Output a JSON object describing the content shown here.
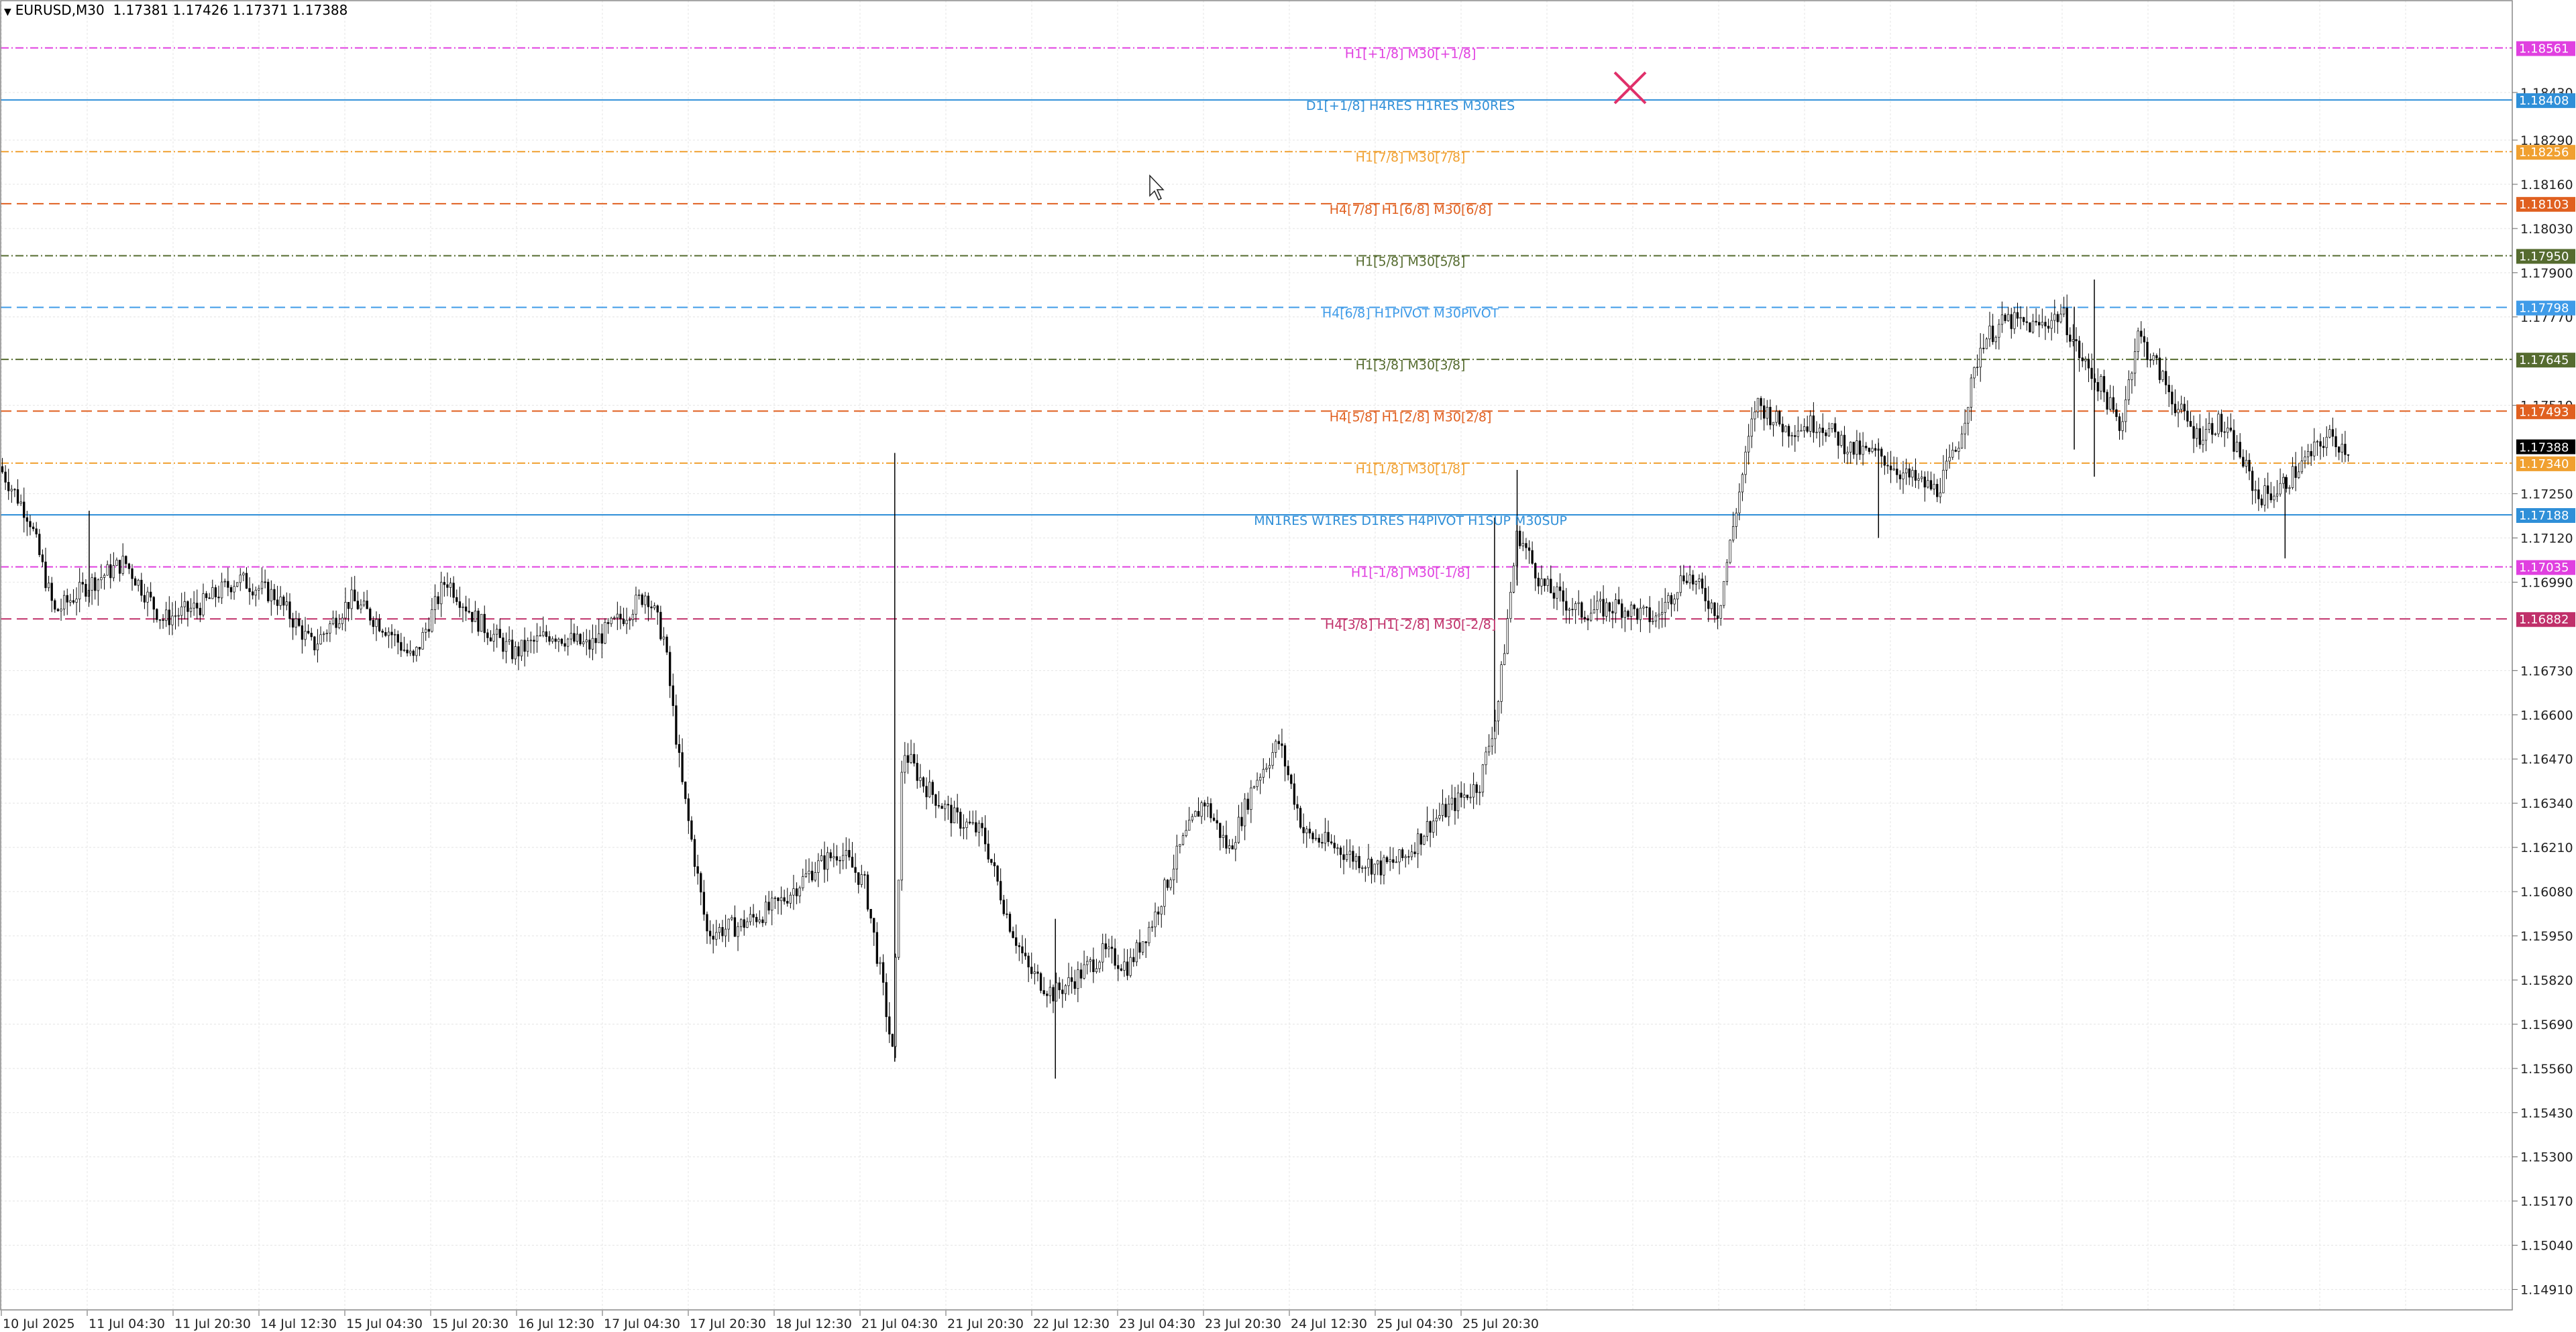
{
  "header": {
    "symbol": "EURUSD,M30",
    "ohlc": "1.17381 1.17426 1.17371 1.17388"
  },
  "colors": {
    "background": "#ffffff",
    "grid": "#e4e4e4",
    "candle": "#000000",
    "bid_tag": "#000000",
    "cross_marker": "#e0306a"
  },
  "chart_data": {
    "type": "candlestick",
    "symbol": "EURUSD",
    "timeframe": "M30",
    "ylim": [
      1.1485,
      1.187
    ],
    "grid": true,
    "y_ticks": [
      "1.18430",
      "1.18290",
      "1.18160",
      "1.18030",
      "1.17900",
      "1.17770",
      "1.17510",
      "1.17250",
      "1.17120",
      "1.16990",
      "1.16730",
      "1.16600",
      "1.16470",
      "1.16340",
      "1.16210",
      "1.16080",
      "1.15950",
      "1.15820",
      "1.15690",
      "1.15560",
      "1.15430",
      "1.15300",
      "1.15170",
      "1.15040",
      "1.14910"
    ],
    "x_ticks": [
      "10 Jul 2025",
      "11 Jul 04:30",
      "11 Jul 20:30",
      "14 Jul 12:30",
      "15 Jul 04:30",
      "15 Jul 20:30",
      "16 Jul 12:30",
      "17 Jul 04:30",
      "17 Jul 20:30",
      "18 Jul 12:30",
      "21 Jul 04:30",
      "21 Jul 20:30",
      "22 Jul 12:30",
      "23 Jul 04:30",
      "23 Jul 20:30",
      "24 Jul 12:30",
      "25 Jul 04:30",
      "25 Jul 20:30"
    ],
    "price_path": [
      {
        "x": 0,
        "p": 1.1733
      },
      {
        "x": 0.012,
        "p": 1.1718
      },
      {
        "x": 0.022,
        "p": 1.169
      },
      {
        "x": 0.035,
        "p": 1.1698
      },
      {
        "x": 0.05,
        "p": 1.1705
      },
      {
        "x": 0.065,
        "p": 1.1688
      },
      {
        "x": 0.08,
        "p": 1.1692
      },
      {
        "x": 0.095,
        "p": 1.17
      },
      {
        "x": 0.11,
        "p": 1.1695
      },
      {
        "x": 0.125,
        "p": 1.168
      },
      {
        "x": 0.14,
        "p": 1.1694
      },
      {
        "x": 0.155,
        "p": 1.1685
      },
      {
        "x": 0.165,
        "p": 1.1676
      },
      {
        "x": 0.178,
        "p": 1.17
      },
      {
        "x": 0.19,
        "p": 1.1688
      },
      {
        "x": 0.205,
        "p": 1.1678
      },
      {
        "x": 0.22,
        "p": 1.1684
      },
      {
        "x": 0.235,
        "p": 1.168
      },
      {
        "x": 0.25,
        "p": 1.169
      },
      {
        "x": 0.258,
        "p": 1.1696
      },
      {
        "x": 0.265,
        "p": 1.1682
      },
      {
        "x": 0.272,
        "p": 1.164
      },
      {
        "x": 0.282,
        "p": 1.1596
      },
      {
        "x": 0.295,
        "p": 1.1598
      },
      {
        "x": 0.31,
        "p": 1.1604
      },
      {
        "x": 0.325,
        "p": 1.1615
      },
      {
        "x": 0.335,
        "p": 1.162
      },
      {
        "x": 0.345,
        "p": 1.161
      },
      {
        "x": 0.352,
        "p": 1.158
      },
      {
        "x": 0.356,
        "p": 1.156
      },
      {
        "x": 0.36,
        "p": 1.165
      },
      {
        "x": 0.368,
        "p": 1.164
      },
      {
        "x": 0.38,
        "p": 1.163
      },
      {
        "x": 0.392,
        "p": 1.1625
      },
      {
        "x": 0.402,
        "p": 1.16
      },
      {
        "x": 0.41,
        "p": 1.1585
      },
      {
        "x": 0.42,
        "p": 1.1578
      },
      {
        "x": 0.428,
        "p": 1.1582
      },
      {
        "x": 0.44,
        "p": 1.159
      },
      {
        "x": 0.45,
        "p": 1.1586
      },
      {
        "x": 0.46,
        "p": 1.16
      },
      {
        "x": 0.47,
        "p": 1.162
      },
      {
        "x": 0.48,
        "p": 1.1635
      },
      {
        "x": 0.49,
        "p": 1.162
      },
      {
        "x": 0.5,
        "p": 1.164
      },
      {
        "x": 0.51,
        "p": 1.1652
      },
      {
        "x": 0.52,
        "p": 1.1625
      },
      {
        "x": 0.53,
        "p": 1.1622
      },
      {
        "x": 0.54,
        "p": 1.1618
      },
      {
        "x": 0.55,
        "p": 1.1615
      },
      {
        "x": 0.56,
        "p": 1.1618
      },
      {
        "x": 0.57,
        "p": 1.1628
      },
      {
        "x": 0.58,
        "p": 1.1634
      },
      {
        "x": 0.59,
        "p": 1.164
      },
      {
        "x": 0.597,
        "p": 1.1662
      },
      {
        "x": 0.605,
        "p": 1.1714
      },
      {
        "x": 0.615,
        "p": 1.1698
      },
      {
        "x": 0.63,
        "p": 1.169
      },
      {
        "x": 0.645,
        "p": 1.1692
      },
      {
        "x": 0.66,
        "p": 1.1688
      },
      {
        "x": 0.672,
        "p": 1.1702
      },
      {
        "x": 0.685,
        "p": 1.169
      },
      {
        "x": 0.692,
        "p": 1.172
      },
      {
        "x": 0.7,
        "p": 1.1752
      },
      {
        "x": 0.712,
        "p": 1.1744
      },
      {
        "x": 0.725,
        "p": 1.1746
      },
      {
        "x": 0.738,
        "p": 1.1738
      },
      {
        "x": 0.75,
        "p": 1.1736
      },
      {
        "x": 0.76,
        "p": 1.173
      },
      {
        "x": 0.772,
        "p": 1.1726
      },
      {
        "x": 0.78,
        "p": 1.1738
      },
      {
        "x": 0.79,
        "p": 1.177
      },
      {
        "x": 0.8,
        "p": 1.1776
      },
      {
        "x": 0.812,
        "p": 1.1774
      },
      {
        "x": 0.822,
        "p": 1.1778
      },
      {
        "x": 0.83,
        "p": 1.1764
      },
      {
        "x": 0.838,
        "p": 1.1756
      },
      {
        "x": 0.845,
        "p": 1.1744
      },
      {
        "x": 0.852,
        "p": 1.1772
      },
      {
        "x": 0.86,
        "p": 1.1762
      },
      {
        "x": 0.868,
        "p": 1.175
      },
      {
        "x": 0.876,
        "p": 1.1742
      },
      {
        "x": 0.884,
        "p": 1.1746
      },
      {
        "x": 0.892,
        "p": 1.1738
      },
      {
        "x": 0.9,
        "p": 1.1724
      },
      {
        "x": 0.908,
        "p": 1.1726
      },
      {
        "x": 0.918,
        "p": 1.1734
      },
      {
        "x": 0.928,
        "p": 1.1742
      },
      {
        "x": 0.936,
        "p": 1.1738
      }
    ],
    "spikes": [
      {
        "x": 0.035,
        "lo": 1.1693,
        "hi": 1.172
      },
      {
        "x": 0.356,
        "lo": 1.1558,
        "hi": 1.1737
      },
      {
        "x": 0.42,
        "lo": 1.1553,
        "hi": 1.16
      },
      {
        "x": 0.595,
        "lo": 1.1655,
        "hi": 1.1718
      },
      {
        "x": 0.604,
        "lo": 1.1698,
        "hi": 1.1732
      },
      {
        "x": 0.748,
        "lo": 1.1712,
        "hi": 1.174
      },
      {
        "x": 0.834,
        "lo": 1.173,
        "hi": 1.1788
      },
      {
        "x": 0.826,
        "lo": 1.1738,
        "hi": 1.178
      },
      {
        "x": 0.91,
        "lo": 1.1706,
        "hi": 1.173
      }
    ],
    "levels": [
      {
        "label": "H1[+1/8] M30[+1/8]",
        "price_label": "1.18561",
        "price": 1.18561,
        "color": "#e040e0",
        "dash": "12 4 2 4"
      },
      {
        "label": "D1[+1/8] H4RES H1RES M30RES",
        "price_label": "1.18408",
        "price": 1.18408,
        "color": "#2f8fd8",
        "dash": ""
      },
      {
        "label": "H1[7/8] M30[7/8]",
        "price_label": "1.18256",
        "price": 1.18256,
        "color": "#f0a030",
        "dash": "12 4 2 4"
      },
      {
        "label": "H4[7/8] H1[6/8] M30[6/8]",
        "price_label": "1.18103",
        "price": 1.18103,
        "color": "#e06020",
        "dash": "16 8"
      },
      {
        "label": "H1[5/8] M30[5/8]",
        "price_label": "1.17950",
        "price": 1.1795,
        "color": "#556b2f",
        "dash": "12 4 2 4"
      },
      {
        "label": "H4[6/8] H1PIVOT M30PIVOT",
        "price_label": "1.17798",
        "price": 1.17798,
        "color": "#3f9be8",
        "dash": "16 8"
      },
      {
        "label": "H1[3/8] M30[3/8]",
        "price_label": "1.17645",
        "price": 1.17645,
        "color": "#556b2f",
        "dash": "12 4 2 4"
      },
      {
        "label": "H4[5/8] H1[2/8] M30[2/8]",
        "price_label": "1.17493",
        "price": 1.17493,
        "color": "#e06020",
        "dash": "16 8"
      },
      {
        "label": "H1[1/8] M30[1/8]",
        "price_label": "1.17340",
        "price": 1.1734,
        "color": "#f0a030",
        "dash": "12 4 2 4"
      },
      {
        "label": "MN1RES W1RES D1RES H4PIVOT H1SUP M30SUP",
        "price_label": "1.17188",
        "price": 1.17188,
        "color": "#2f8fd8",
        "dash": ""
      },
      {
        "label": "H1[-1/8] M30[-1/8]",
        "price_label": "1.17035",
        "price": 1.17035,
        "color": "#e040e0",
        "dash": "12 4 2 4"
      },
      {
        "label": "H4[3/8] H1[-2/8] M30[-2/8]",
        "price_label": "1.16882",
        "price": 1.16882,
        "color": "#c0306a",
        "dash": "16 8"
      }
    ],
    "bid": {
      "price": 1.17388,
      "label": "1.17388"
    }
  }
}
